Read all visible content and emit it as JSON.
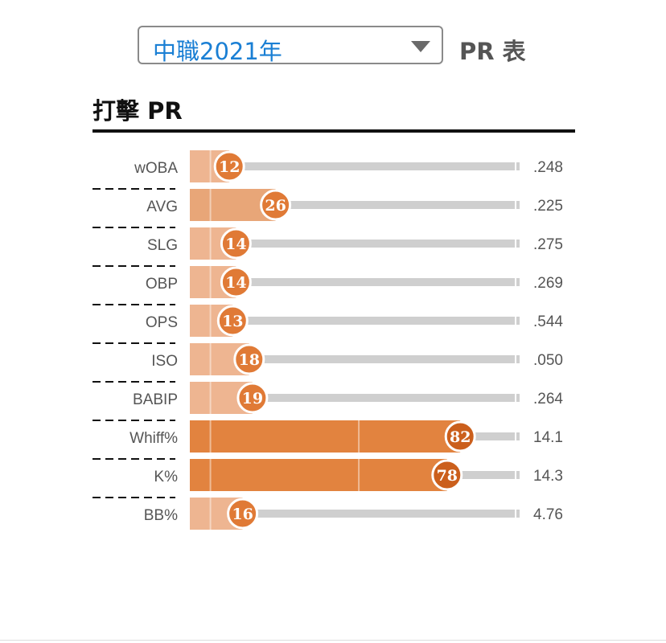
{
  "selector": {
    "season": "中職2021年",
    "table_label": "PR 表"
  },
  "section_title": "打擊 PR",
  "colors": {
    "low_bar": "#eeb591",
    "mid_bar": "#e8a678",
    "high_bar": "#e2833f",
    "badge": "#e07a36",
    "badge_high": "#cb5f1c",
    "track": "#cfcfcf"
  },
  "chart_data": {
    "type": "bar",
    "title": "",
    "xlabel": "",
    "ylabel": "",
    "xlim": [
      0,
      100
    ],
    "categories": [
      "wOBA",
      "AVG",
      "SLG",
      "OBP",
      "OPS",
      "ISO",
      "BABIP",
      "Whiff%",
      "K%",
      "BB%"
    ],
    "series": [
      {
        "values": [
          12,
          26,
          14,
          14,
          13,
          18,
          19,
          82,
          78,
          16
        ]
      }
    ],
    "stat_values": [
      ".248",
      ".225",
      ".275",
      ".269",
      ".544",
      ".050",
      ".264",
      "14.1",
      "14.3",
      "4.76"
    ]
  }
}
